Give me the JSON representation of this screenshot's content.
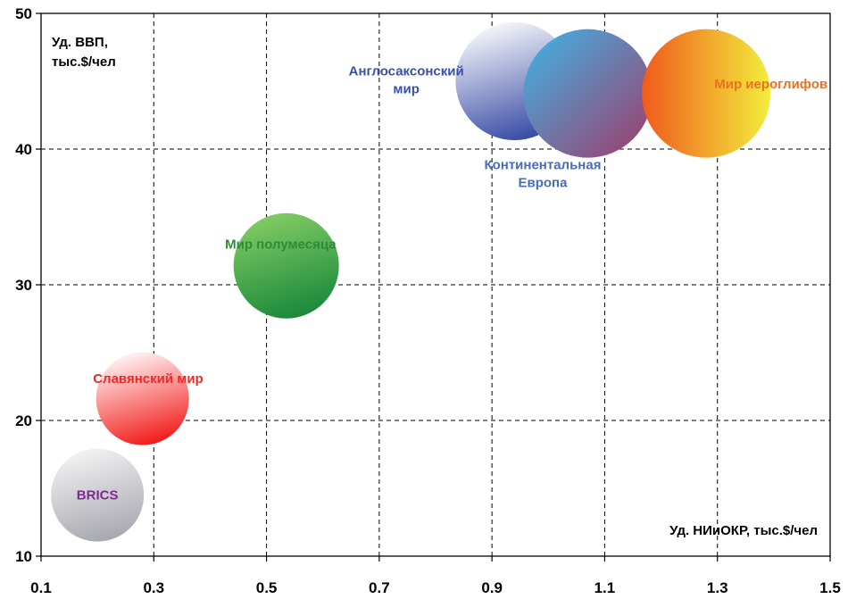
{
  "chart_data": {
    "type": "bubble",
    "title": "",
    "ylabel_lines": [
      "Уд. ВВП,",
      "тыс.$/чел"
    ],
    "xlabel": "Уд. НИиОКР, тыс.$/чел",
    "xlim": [
      0.1,
      1.5
    ],
    "ylim": [
      10,
      50
    ],
    "xticks": [
      0.1,
      0.3,
      0.5,
      0.7,
      0.9,
      1.1,
      1.3,
      1.5
    ],
    "xtick_labels": [
      "0.1",
      "0.3",
      "0.5",
      "0.7",
      "0.9",
      "1.1",
      "1.3",
      "1.5"
    ],
    "yticks": [
      10,
      20,
      30,
      40,
      50
    ],
    "ytick_labels": [
      "10",
      "20",
      "30",
      "40",
      "50"
    ],
    "grid": true,
    "points": [
      {
        "id": "brics",
        "label_lines": [
          "BRICS"
        ],
        "x": 0.2,
        "y": 14.5,
        "size": 52,
        "label_x": 0.2,
        "label_y": 14.5,
        "label_color": "#7B2C8C",
        "gradient": [
          "#f6f6f6",
          "#a9a9b1"
        ]
      },
      {
        "id": "slavic",
        "label_lines": [
          "Славянский мир"
        ],
        "x": 0.28,
        "y": 21.6,
        "size": 52,
        "label_x": 0.29,
        "label_y": 23.1,
        "label_color": "#F02828",
        "gradient": [
          "#ffffff",
          "#f2201e"
        ]
      },
      {
        "id": "crescent",
        "label_lines": [
          "Мир полумесяца"
        ],
        "x": 0.535,
        "y": 31.4,
        "size": 59,
        "label_x": 0.525,
        "label_y": 33.0,
        "label_color": "#2E8B3A",
        "gradient": [
          "#86cf66",
          "#1c8a3c"
        ]
      },
      {
        "id": "anglo",
        "label_lines": [
          "Англосаксонский",
          "мир"
        ],
        "x": 0.94,
        "y": 45.0,
        "size": 66,
        "label_x": 0.748,
        "label_y": 45.1,
        "label_color": "#3A4FA8",
        "gradient": [
          "#ffffff",
          "#3c4fa6"
        ]
      },
      {
        "id": "continental",
        "label_lines": [
          "Континентальная",
          "Европа"
        ],
        "x": 1.07,
        "y": 44.1,
        "size": 72,
        "label_x": 0.99,
        "label_y": 38.2,
        "label_color": "#4A6CB8",
        "gradient": [
          "#3db6e8",
          "#a13a68"
        ]
      },
      {
        "id": "hieroglyph",
        "label_lines": [
          "Мир иероглифов"
        ],
        "x": 1.28,
        "y": 44.1,
        "size": 72,
        "label_x": 1.395,
        "label_y": 44.8,
        "label_color": "#F07020",
        "gradient": [
          "#f05a1c",
          "#f2ee3c"
        ]
      }
    ]
  }
}
